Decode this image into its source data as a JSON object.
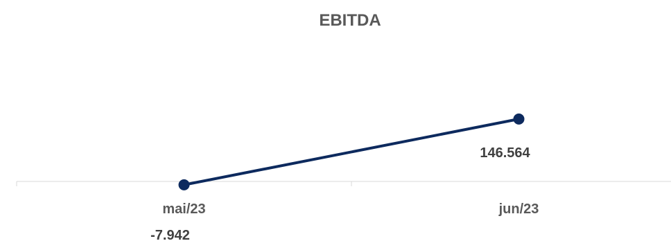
{
  "chart_data": {
    "type": "line",
    "title": "EBITDA",
    "xlabel": "",
    "ylabel": "",
    "categories": [
      "mai/23",
      "jun/23"
    ],
    "series": [
      {
        "values": [
          -7942,
          146564
        ],
        "data_labels": [
          "-7.942",
          "146.564"
        ],
        "color": "#0D2A5E"
      }
    ],
    "axis_color": "#D9D9D9",
    "grid": false,
    "legend": "none"
  }
}
